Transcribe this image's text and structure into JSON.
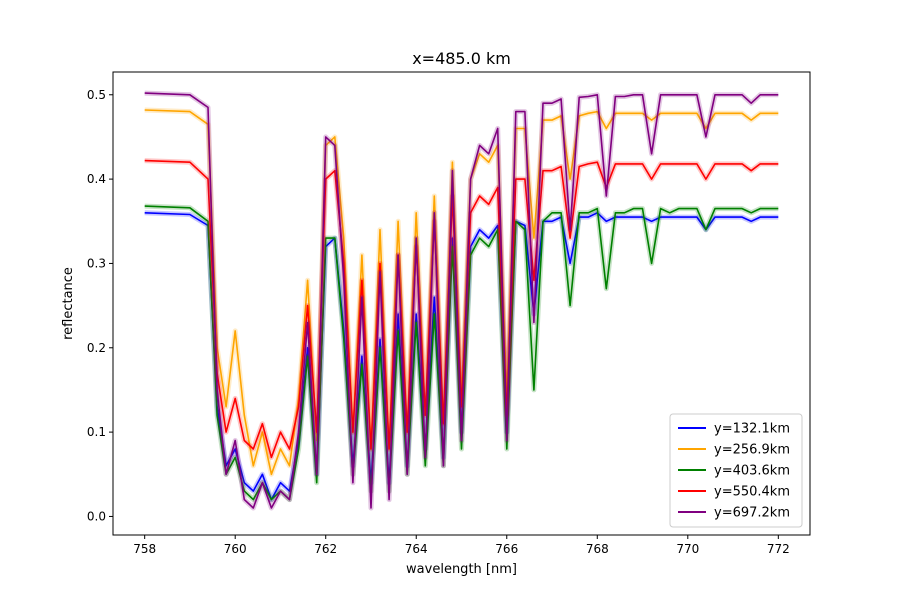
{
  "chart_data": {
    "type": "line",
    "title": "x=485.0 km",
    "xlabel": "wavelength [nm]",
    "ylabel": "reflectance",
    "xlim": [
      757.3,
      772.7
    ],
    "ylim": [
      -0.022,
      0.527
    ],
    "xticks": [
      758,
      760,
      762,
      764,
      766,
      768,
      770,
      772
    ],
    "yticks": [
      0.0,
      0.1,
      0.2,
      0.3,
      0.4,
      0.5
    ],
    "ytick_labels": [
      "0.0",
      "0.1",
      "0.2",
      "0.3",
      "0.4",
      "0.5"
    ],
    "grid": false,
    "legend_position": "lower right",
    "x": [
      758.0,
      759.0,
      759.4,
      759.6,
      759.8,
      760.0,
      760.2,
      760.4,
      760.6,
      760.8,
      761.0,
      761.2,
      761.4,
      761.6,
      761.8,
      762.0,
      762.2,
      762.4,
      762.6,
      762.8,
      763.0,
      763.2,
      763.4,
      763.6,
      763.8,
      764.0,
      764.2,
      764.4,
      764.6,
      764.8,
      765.0,
      765.2,
      765.4,
      765.6,
      765.8,
      766.0,
      766.2,
      766.4,
      766.6,
      766.8,
      767.0,
      767.2,
      767.4,
      767.6,
      767.8,
      768.0,
      768.2,
      768.4,
      768.6,
      768.8,
      769.0,
      769.2,
      769.4,
      769.6,
      769.8,
      770.0,
      770.2,
      770.4,
      770.6,
      770.8,
      771.0,
      771.2,
      771.4,
      771.6,
      771.8,
      772.0
    ],
    "series": [
      {
        "name": "y=132.1km",
        "color": "#0000ff",
        "values": [
          0.36,
          0.358,
          0.345,
          0.13,
          0.06,
          0.08,
          0.04,
          0.03,
          0.05,
          0.02,
          0.04,
          0.03,
          0.09,
          0.2,
          0.05,
          0.32,
          0.33,
          0.22,
          0.06,
          0.19,
          0.04,
          0.21,
          0.04,
          0.24,
          0.06,
          0.24,
          0.08,
          0.26,
          0.07,
          0.33,
          0.1,
          0.32,
          0.34,
          0.33,
          0.345,
          0.1,
          0.35,
          0.345,
          0.24,
          0.35,
          0.35,
          0.355,
          0.3,
          0.355,
          0.355,
          0.36,
          0.35,
          0.355,
          0.355,
          0.355,
          0.355,
          0.35,
          0.355,
          0.355,
          0.355,
          0.355,
          0.355,
          0.34,
          0.355,
          0.355,
          0.355,
          0.355,
          0.35,
          0.355,
          0.355,
          0.355
        ]
      },
      {
        "name": "y=256.9km",
        "color": "#ffa500",
        "values": [
          0.482,
          0.48,
          0.465,
          0.2,
          0.13,
          0.22,
          0.12,
          0.06,
          0.1,
          0.05,
          0.08,
          0.06,
          0.14,
          0.28,
          0.09,
          0.44,
          0.45,
          0.33,
          0.1,
          0.31,
          0.08,
          0.34,
          0.08,
          0.35,
          0.1,
          0.36,
          0.12,
          0.38,
          0.11,
          0.42,
          0.14,
          0.4,
          0.43,
          0.42,
          0.44,
          0.14,
          0.46,
          0.46,
          0.33,
          0.47,
          0.47,
          0.475,
          0.4,
          0.475,
          0.478,
          0.48,
          0.46,
          0.478,
          0.478,
          0.478,
          0.478,
          0.47,
          0.478,
          0.478,
          0.478,
          0.478,
          0.478,
          0.46,
          0.478,
          0.478,
          0.478,
          0.478,
          0.47,
          0.478,
          0.478,
          0.478
        ]
      },
      {
        "name": "y=403.6km",
        "color": "#008000",
        "values": [
          0.368,
          0.366,
          0.35,
          0.12,
          0.05,
          0.07,
          0.03,
          0.02,
          0.04,
          0.02,
          0.03,
          0.02,
          0.08,
          0.19,
          0.04,
          0.33,
          0.33,
          0.21,
          0.05,
          0.18,
          0.03,
          0.2,
          0.03,
          0.22,
          0.05,
          0.23,
          0.06,
          0.24,
          0.06,
          0.32,
          0.08,
          0.31,
          0.33,
          0.32,
          0.34,
          0.08,
          0.35,
          0.34,
          0.15,
          0.35,
          0.36,
          0.36,
          0.25,
          0.36,
          0.36,
          0.365,
          0.27,
          0.36,
          0.36,
          0.365,
          0.365,
          0.3,
          0.365,
          0.36,
          0.365,
          0.365,
          0.365,
          0.34,
          0.365,
          0.365,
          0.365,
          0.365,
          0.36,
          0.365,
          0.365,
          0.365
        ]
      },
      {
        "name": "y=550.4km",
        "color": "#ff0000",
        "values": [
          0.422,
          0.42,
          0.4,
          0.17,
          0.1,
          0.14,
          0.09,
          0.08,
          0.11,
          0.07,
          0.1,
          0.08,
          0.13,
          0.25,
          0.1,
          0.4,
          0.41,
          0.3,
          0.1,
          0.28,
          0.08,
          0.3,
          0.08,
          0.31,
          0.1,
          0.32,
          0.12,
          0.35,
          0.11,
          0.38,
          0.13,
          0.36,
          0.38,
          0.37,
          0.39,
          0.12,
          0.4,
          0.4,
          0.28,
          0.41,
          0.41,
          0.415,
          0.33,
          0.415,
          0.418,
          0.42,
          0.39,
          0.418,
          0.418,
          0.418,
          0.418,
          0.4,
          0.418,
          0.418,
          0.418,
          0.418,
          0.418,
          0.4,
          0.418,
          0.418,
          0.418,
          0.418,
          0.41,
          0.418,
          0.418,
          0.418
        ]
      },
      {
        "name": "y=697.2km",
        "color": "#800080",
        "values": [
          0.502,
          0.5,
          0.485,
          0.15,
          0.05,
          0.09,
          0.02,
          0.01,
          0.04,
          0.01,
          0.03,
          0.02,
          0.1,
          0.23,
          0.05,
          0.45,
          0.44,
          0.28,
          0.04,
          0.26,
          0.01,
          0.29,
          0.02,
          0.31,
          0.05,
          0.33,
          0.07,
          0.36,
          0.06,
          0.41,
          0.09,
          0.4,
          0.44,
          0.43,
          0.46,
          0.09,
          0.48,
          0.48,
          0.23,
          0.49,
          0.49,
          0.495,
          0.34,
          0.497,
          0.498,
          0.5,
          0.38,
          0.498,
          0.498,
          0.5,
          0.5,
          0.43,
          0.5,
          0.5,
          0.5,
          0.5,
          0.5,
          0.45,
          0.5,
          0.5,
          0.5,
          0.5,
          0.49,
          0.5,
          0.5,
          0.5
        ]
      }
    ]
  }
}
